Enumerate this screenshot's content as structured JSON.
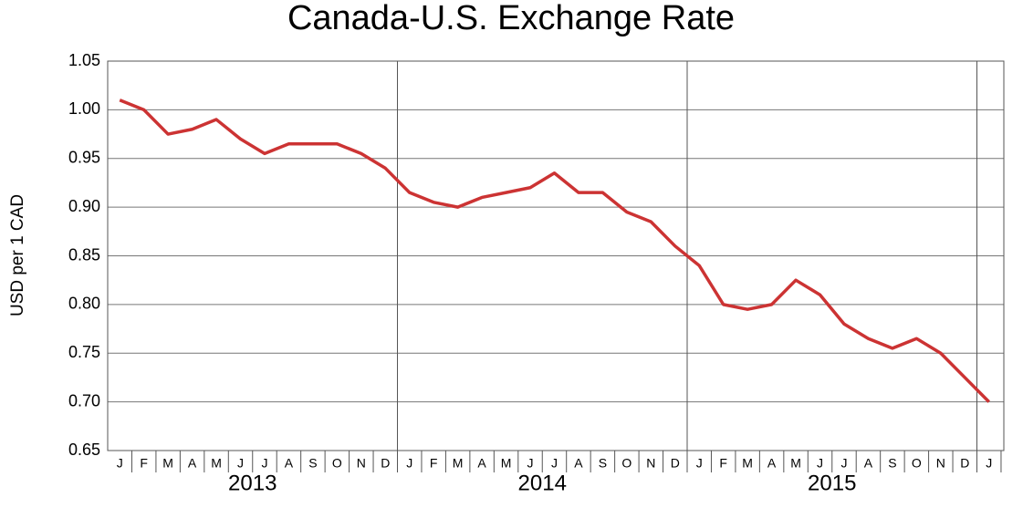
{
  "chart_data": {
    "type": "line",
    "title": "Canada-U.S. Exchange Rate",
    "y_label": "USD per 1 CAD",
    "x": [
      "2013-01",
      "2013-02",
      "2013-03",
      "2013-04",
      "2013-05",
      "2013-06",
      "2013-07",
      "2013-08",
      "2013-09",
      "2013-10",
      "2013-11",
      "2013-12",
      "2014-01",
      "2014-02",
      "2014-03",
      "2014-04",
      "2014-05",
      "2014-06",
      "2014-07",
      "2014-08",
      "2014-09",
      "2014-10",
      "2014-11",
      "2014-12",
      "2015-01",
      "2015-02",
      "2015-03",
      "2015-04",
      "2015-05",
      "2015-06",
      "2015-07",
      "2015-08",
      "2015-09",
      "2015-10",
      "2015-11",
      "2015-12",
      "2016-01"
    ],
    "series": [
      {
        "name": "USD per 1 CAD",
        "color": "#cc3333",
        "values": [
          1.01,
          1.0,
          0.975,
          0.98,
          0.99,
          0.97,
          0.955,
          0.965,
          0.965,
          0.965,
          0.955,
          0.94,
          0.915,
          0.905,
          0.9,
          0.91,
          0.915,
          0.92,
          0.935,
          0.915,
          0.915,
          0.895,
          0.885,
          0.86,
          0.84,
          0.8,
          0.795,
          0.8,
          0.825,
          0.81,
          0.78,
          0.765,
          0.755,
          0.765,
          0.75,
          0.725,
          0.7
        ]
      }
    ],
    "xticks": [
      {
        "value": "2013-01",
        "label": "J"
      },
      {
        "value": "2013-02",
        "label": "F"
      },
      {
        "value": "2013-03",
        "label": "M"
      },
      {
        "value": "2013-04",
        "label": "A"
      },
      {
        "value": "2013-05",
        "label": "M"
      },
      {
        "value": "2013-06",
        "label": "J"
      },
      {
        "value": "2013-07",
        "label": "J"
      },
      {
        "value": "2013-08",
        "label": "A"
      },
      {
        "value": "2013-09",
        "label": "S"
      },
      {
        "value": "2013-10",
        "label": "O"
      },
      {
        "value": "2013-11",
        "label": "N"
      },
      {
        "value": "2013-12",
        "label": "D"
      },
      {
        "value": "2014-01",
        "label": "J"
      },
      {
        "value": "2014-02",
        "label": "F"
      },
      {
        "value": "2014-03",
        "label": "M"
      },
      {
        "value": "2014-04",
        "label": "A"
      },
      {
        "value": "2014-05",
        "label": "M"
      },
      {
        "value": "2014-06",
        "label": "J"
      },
      {
        "value": "2014-07",
        "label": "J"
      },
      {
        "value": "2014-08",
        "label": "A"
      },
      {
        "value": "2014-09",
        "label": "S"
      },
      {
        "value": "2014-10",
        "label": "O"
      },
      {
        "value": "2014-11",
        "label": "N"
      },
      {
        "value": "2014-12",
        "label": "D"
      },
      {
        "value": "2015-01",
        "label": "J"
      },
      {
        "value": "2015-02",
        "label": "F"
      },
      {
        "value": "2015-03",
        "label": "M"
      },
      {
        "value": "2015-04",
        "label": "A"
      },
      {
        "value": "2015-05",
        "label": "M"
      },
      {
        "value": "2015-06",
        "label": "J"
      },
      {
        "value": "2015-07",
        "label": "J"
      },
      {
        "value": "2015-08",
        "label": "A"
      },
      {
        "value": "2015-09",
        "label": "S"
      },
      {
        "value": "2015-10",
        "label": "O"
      },
      {
        "value": "2015-11",
        "label": "N"
      },
      {
        "value": "2015-12",
        "label": "D"
      },
      {
        "value": "2016-01",
        "label": "J"
      }
    ],
    "years": [
      {
        "value": "2013",
        "label": "2013"
      },
      {
        "value": "2014",
        "label": "2014"
      },
      {
        "value": "2015",
        "label": "2015"
      }
    ],
    "ylim": [
      0.65,
      1.05
    ],
    "yticks": [
      0.65,
      {
        "value": 0.7,
        "label": "0.70"
      },
      0.75,
      {
        "value": 0.8,
        "label": "0.80"
      },
      0.85,
      {
        "value": 0.9,
        "label": "0.90"
      },
      0.95,
      {
        "value": 1.0,
        "label": "1.00"
      },
      1.05
    ],
    "grid": true
  }
}
